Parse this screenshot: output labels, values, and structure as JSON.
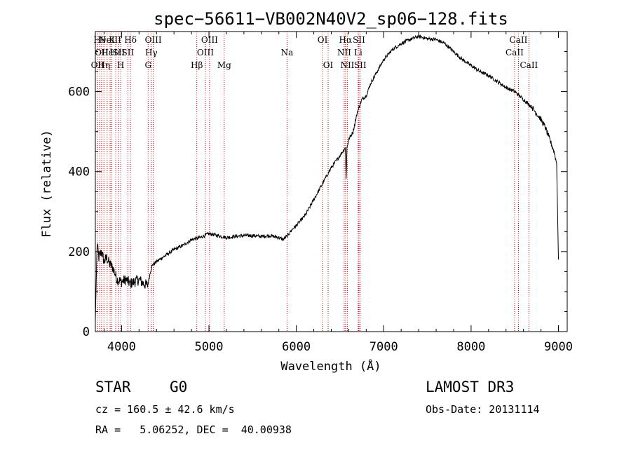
{
  "chart_data": {
    "type": "line",
    "title": "spec−56611−VB002N40V2_sp06−128.fits",
    "xlabel": "Wavelength (Å)",
    "ylabel": "Flux (relative)",
    "xlim": [
      3700,
      9100
    ],
    "ylim": [
      0,
      750
    ],
    "xticks": [
      4000,
      5000,
      6000,
      7000,
      8000,
      9000
    ],
    "yticks": [
      0,
      200,
      400,
      600
    ],
    "grid": false,
    "series": [
      {
        "name": "flux",
        "x": [
          3700,
          3720,
          3740,
          3770,
          3800,
          3830,
          3860,
          3900,
          3950,
          4000,
          4050,
          4100,
          4150,
          4200,
          4250,
          4300,
          4330,
          4350,
          4400,
          4500,
          4600,
          4700,
          4800,
          4900,
          5000,
          5100,
          5200,
          5300,
          5400,
          5500,
          5600,
          5700,
          5800,
          5850,
          5900,
          5950,
          6000,
          6100,
          6200,
          6300,
          6400,
          6500,
          6560,
          6570,
          6580,
          6600,
          6650,
          6700,
          6750,
          6800,
          6850,
          6900,
          6950,
          7000,
          7100,
          7200,
          7300,
          7400,
          7500,
          7600,
          7700,
          7800,
          7900,
          8000,
          8100,
          8200,
          8300,
          8400,
          8500,
          8600,
          8700,
          8800,
          8850,
          8900,
          8950,
          8980,
          9000
        ],
        "values": [
          30,
          220,
          185,
          200,
          175,
          185,
          170,
          160,
          130,
          125,
          130,
          120,
          125,
          130,
          120,
          115,
          150,
          165,
          175,
          190,
          205,
          215,
          230,
          235,
          245,
          240,
          235,
          238,
          240,
          240,
          238,
          240,
          235,
          230,
          240,
          255,
          265,
          290,
          330,
          370,
          410,
          440,
          460,
          385,
          460,
          480,
          500,
          550,
          580,
          590,
          620,
          640,
          660,
          680,
          705,
          720,
          730,
          738,
          732,
          730,
          720,
          700,
          680,
          665,
          650,
          640,
          625,
          610,
          600,
          580,
          560,
          530,
          510,
          480,
          450,
          420,
          180
        ]
      }
    ],
    "emission_lines": [
      {
        "wavelength": 3726,
        "label": "OII",
        "row": 2
      },
      {
        "wavelength": 3750,
        "label": "Hθ",
        "row": 0
      },
      {
        "wavelength": 3772,
        "label": "OII",
        "row": 1
      },
      {
        "wavelength": 3798,
        "label": "Hη",
        "row": 2
      },
      {
        "wavelength": 3835,
        "label": "Hε",
        "row": 1
      },
      {
        "wavelength": 3869,
        "label": "NeIII",
        "row": 0
      },
      {
        "wavelength": 3889,
        "label": "K",
        "row": 0
      },
      {
        "wavelength": 3933,
        "label": "Hε",
        "row": 1
      },
      {
        "wavelength": 3968,
        "label": "SII",
        "row": 1
      },
      {
        "wavelength": 3990,
        "label": "H",
        "row": 2
      },
      {
        "wavelength": 4072,
        "label": "SII",
        "row": 1
      },
      {
        "wavelength": 4102,
        "label": "Hδ",
        "row": 0
      },
      {
        "wavelength": 4304,
        "label": "G",
        "row": 2
      },
      {
        "wavelength": 4340,
        "label": "Hγ",
        "row": 1
      },
      {
        "wavelength": 4363,
        "label": "OIII",
        "row": 0
      },
      {
        "wavelength": 4861,
        "label": "Hβ",
        "row": 2
      },
      {
        "wavelength": 4959,
        "label": "OIII",
        "row": 1
      },
      {
        "wavelength": 5007,
        "label": "OIII",
        "row": 0
      },
      {
        "wavelength": 5175,
        "label": "Mg",
        "row": 2
      },
      {
        "wavelength": 5894,
        "label": "Na",
        "row": 1
      },
      {
        "wavelength": 6300,
        "label": "OI",
        "row": 0
      },
      {
        "wavelength": 6364,
        "label": "OI",
        "row": 2
      },
      {
        "wavelength": 6548,
        "label": "NII",
        "row": 1
      },
      {
        "wavelength": 6563,
        "label": "Hα",
        "row": 0
      },
      {
        "wavelength": 6584,
        "label": "NII",
        "row": 2
      },
      {
        "wavelength": 6708,
        "label": "Li",
        "row": 1
      },
      {
        "wavelength": 6717,
        "label": "SII",
        "row": 0
      },
      {
        "wavelength": 6731,
        "label": "SII",
        "row": 2
      },
      {
        "wavelength": 8498,
        "label": "CaII",
        "row": 1
      },
      {
        "wavelength": 8542,
        "label": "CaII",
        "row": 0
      },
      {
        "wavelength": 8662,
        "label": "CaII",
        "row": 2
      }
    ],
    "colors": {
      "spectrum": "#000000",
      "line_marker": "#cc0000",
      "axis": "#000000"
    }
  },
  "info": {
    "class_label": "STAR",
    "subclass": "G0",
    "survey": "LAMOST DR3",
    "cz": "cz = 160.5 ± 42.6 km/s",
    "obs_date": "Obs-Date: 20131114",
    "coords": "RA =   5.06252, DEC =  40.00938"
  }
}
